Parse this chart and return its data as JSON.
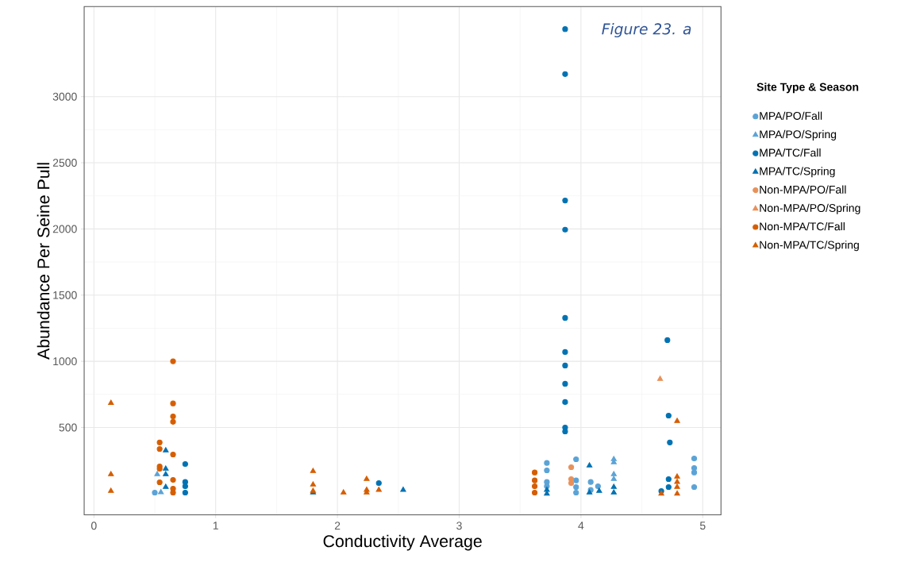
{
  "chart_data": {
    "type": "scatter",
    "xlabel": "Conductivity Average",
    "ylabel": "Abundance Per Seine Pull",
    "legend_title": "Site Type & Season",
    "annotations": [
      "Figure 23. a"
    ],
    "xlim": [
      -0.08,
      5.15
    ],
    "ylim": [
      -160,
      3680
    ],
    "xticks": [
      0,
      1,
      2,
      3,
      4,
      5
    ],
    "yticks": [
      500,
      1000,
      1500,
      2000,
      2500,
      3000
    ],
    "grid": true,
    "legend": "right",
    "series": [
      {
        "name": "MPA/PO/Fall",
        "color": "#5ba3d6",
        "marker": "circle",
        "x": [
          0.5,
          3.72,
          3.72,
          3.72,
          3.72,
          3.96,
          3.96,
          3.96,
          3.96,
          4.08,
          4.08,
          4.14,
          4.93,
          4.93,
          4.93,
          4.93
        ],
        "values": [
          8,
          232,
          176,
          88,
          56,
          260,
          100,
          50,
          8,
          88,
          28,
          56,
          266,
          194,
          160,
          50
        ]
      },
      {
        "name": "MPA/PO/Spring",
        "color": "#5ba3d6",
        "marker": "triangle",
        "x": [
          0.52,
          0.55,
          4.27,
          4.27,
          4.27,
          4.27
        ],
        "values": [
          146,
          10,
          260,
          236,
          146,
          110
        ]
      },
      {
        "name": "MPA/TC/Fall",
        "color": "#0072b2",
        "marker": "circle",
        "x": [
          0.75,
          0.75,
          0.75,
          0.75,
          2.34,
          3.87,
          3.87,
          3.87,
          3.87,
          3.87,
          3.87,
          3.87,
          3.87,
          3.87,
          3.87,
          3.87,
          4.71,
          4.72,
          4.73,
          4.72,
          4.72,
          4.66
        ],
        "values": [
          224,
          88,
          56,
          8,
          80,
          3510,
          3170,
          2215,
          1995,
          1328,
          1070,
          968,
          830,
          692,
          500,
          470,
          1160,
          590,
          387,
          110,
          50,
          20
        ]
      },
      {
        "name": "MPA/TC/Spring",
        "color": "#0072b2",
        "marker": "triangle",
        "x": [
          0.59,
          0.59,
          0.59,
          0.59,
          1.8,
          2.54,
          3.72,
          3.72,
          4.07,
          4.07,
          4.15,
          4.27,
          4.27
        ],
        "values": [
          326,
          188,
          146,
          50,
          8,
          28,
          28,
          0,
          212,
          8,
          20,
          50,
          8
        ]
      },
      {
        "name": "Non-MPA/PO/Fall",
        "color": "#e8915a",
        "marker": "circle",
        "x": [
          3.92,
          3.92,
          3.92
        ],
        "values": [
          200,
          110,
          80
        ]
      },
      {
        "name": "Non-MPA/PO/Spring",
        "color": "#e8915a",
        "marker": "triangle",
        "x": [
          4.65
        ],
        "values": [
          866
        ]
      },
      {
        "name": "Non-MPA/TC/Fall",
        "color": "#d55e00",
        "marker": "circle",
        "x": [
          0.65,
          0.65,
          0.65,
          0.65,
          0.65,
          0.65,
          0.65,
          0.65,
          0.54,
          0.54,
          0.54,
          0.54,
          0.54,
          3.62,
          3.62,
          3.62,
          3.62
        ],
        "values": [
          1000,
          682,
          584,
          543,
          296,
          104,
          38,
          8,
          387,
          338,
          206,
          188,
          86,
          160,
          100,
          56,
          8
        ]
      },
      {
        "name": "Non-MPA/TC/Spring",
        "color": "#d55e00",
        "marker": "triangle",
        "x": [
          0.14,
          0.14,
          0.14,
          1.8,
          1.8,
          1.8,
          2.05,
          2.24,
          2.24,
          2.24,
          2.34,
          4.66,
          4.79,
          4.79,
          4.79,
          4.79,
          4.79
        ],
        "values": [
          685,
          146,
          20,
          170,
          68,
          20,
          8,
          110,
          28,
          8,
          28,
          0,
          548,
          128,
          88,
          50,
          0
        ]
      }
    ]
  }
}
